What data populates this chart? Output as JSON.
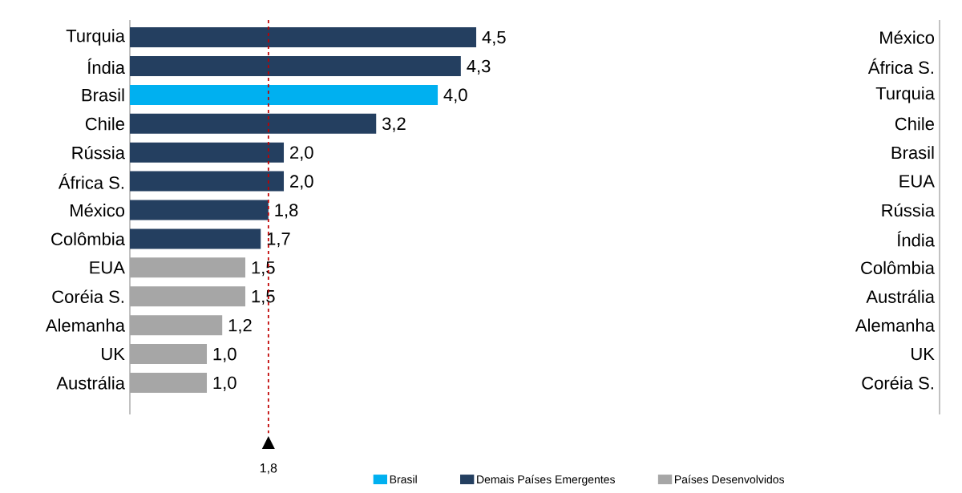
{
  "chart_data": [
    {
      "type": "bar",
      "orientation": "horizontal",
      "categories": [
        "Turquia",
        "Índia",
        "Brasil",
        "Chile",
        "Rússia",
        "África S.",
        "México",
        "Colômbia",
        "EUA",
        "Coréia S.",
        "Alemanha",
        "UK",
        "Austrália"
      ],
      "series": [
        {
          "name": "Brasil",
          "color": "#00b0f0",
          "values": [
            null,
            null,
            4.0,
            null,
            null,
            null,
            null,
            null,
            null,
            null,
            null,
            null,
            null
          ],
          "value_labels": [
            null,
            null,
            "4,0",
            null,
            null,
            null,
            null,
            null,
            null,
            null,
            null,
            null,
            null
          ]
        },
        {
          "name": "Demais Países Emergentes",
          "color": "#243f60",
          "values": [
            4.5,
            4.3,
            null,
            3.2,
            2.0,
            2.0,
            1.8,
            1.7,
            null,
            null,
            null,
            null,
            null
          ],
          "value_labels": [
            "4,5",
            "4,3",
            null,
            "3,2",
            "2,0",
            "2,0",
            "1,8",
            "1,7",
            null,
            null,
            null,
            null,
            null
          ]
        },
        {
          "name": "Países Desenvolvidos",
          "color": "#a6a6a6",
          "values": [
            null,
            null,
            null,
            null,
            null,
            null,
            null,
            null,
            1.5,
            1.5,
            1.2,
            1.0,
            1.0
          ],
          "value_labels": [
            null,
            null,
            null,
            null,
            null,
            null,
            null,
            null,
            "1,5",
            "1,5",
            "1,2",
            "1,0",
            "1,0"
          ]
        }
      ],
      "ref_lines": [
        {
          "axis": "x",
          "value": 1.8,
          "label": "1,8",
          "color": "#c00000",
          "line_style": "dashed"
        }
      ],
      "legend": "bottom"
    },
    {
      "type": "other",
      "categories": [
        "México",
        "África S.",
        "Turquia",
        "Chile",
        "Brasil",
        "EUA",
        "Rússia",
        "Índia",
        "Colômbia",
        "Austrália",
        "Alemanha",
        "UK",
        "Coréia S."
      ]
    }
  ]
}
